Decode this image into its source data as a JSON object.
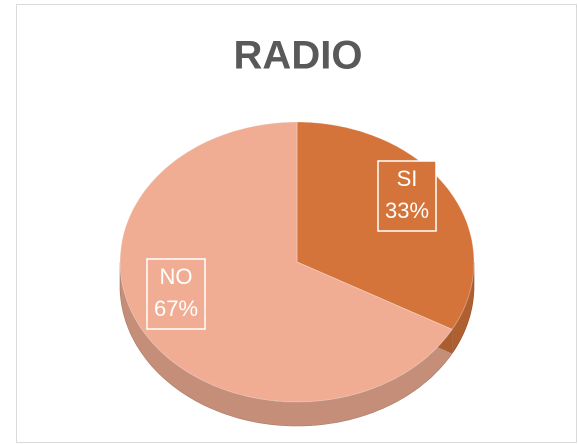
{
  "chart_data": {
    "type": "pie",
    "title": "RADIO",
    "categories": [
      "SI",
      "NO"
    ],
    "values": [
      33,
      67
    ],
    "value_labels": [
      "33%",
      "67%"
    ],
    "colors": [
      "#d5743a",
      "#f0ad94"
    ]
  }
}
